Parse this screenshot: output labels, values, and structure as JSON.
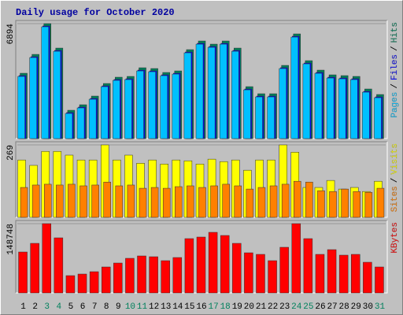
{
  "chart_data": [
    {
      "type": "bar",
      "title": "Daily usage for October 2020",
      "ylim": [
        0,
        6894
      ],
      "yticks": [
        6894
      ],
      "legend_separator": "/",
      "series": [
        {
          "name": "Pages",
          "color": "#00c0ff",
          "values": [
            3728,
            4860,
            6704,
            5238,
            1509,
            1840,
            2359,
            3114,
            3492,
            3539,
            4058,
            4011,
            3775,
            3869,
            5144,
            5663,
            5474,
            5663,
            5238,
            2925,
            2500,
            2500,
            4200,
            6088,
            4483,
            3916,
            3633,
            3586,
            3539,
            2784,
            2453
          ]
        },
        {
          "name": "Files",
          "color": "#0000ff",
          "values": [
            3778,
            4910,
            6754,
            5288,
            1559,
            1890,
            2409,
            3164,
            3542,
            3589,
            4108,
            4061,
            3825,
            3919,
            5194,
            5713,
            5524,
            5713,
            5288,
            2975,
            2550,
            2550,
            4250,
            6138,
            4533,
            3966,
            3683,
            3636,
            3589,
            2834,
            2503
          ]
        },
        {
          "name": "Hits",
          "color": "#00805c",
          "values": [
            3918,
            5050,
            6894,
            5428,
            1699,
            2030,
            2549,
            3304,
            3682,
            3729,
            4248,
            4201,
            3965,
            4059,
            5334,
            5853,
            5664,
            5853,
            5428,
            3115,
            2690,
            2690,
            4390,
            6278,
            4673,
            4106,
            3823,
            3776,
            3729,
            2974,
            2643
          ]
        }
      ]
    },
    {
      "type": "bar",
      "ylim": [
        0,
        269
      ],
      "yticks": [
        269
      ],
      "legend_separator": "/",
      "series": [
        {
          "name": "Sites",
          "color": "#ff8000",
          "values": [
            111,
            120,
            123,
            120,
            123,
            117,
            120,
            131,
            117,
            120,
            108,
            111,
            108,
            114,
            117,
            111,
            117,
            123,
            117,
            105,
            111,
            117,
            123,
            134,
            131,
            99,
            96,
            105,
            96,
            93,
            108
          ]
        },
        {
          "name": "Visits",
          "color": "#ffff00",
          "values": [
            213,
            193,
            245,
            245,
            231,
            213,
            213,
            269,
            213,
            231,
            201,
            213,
            198,
            213,
            210,
            198,
            216,
            207,
            213,
            175,
            213,
            213,
            269,
            242,
            111,
            111,
            137,
            105,
            111,
            96,
            134
          ]
        }
      ]
    },
    {
      "type": "bar",
      "ylim": [
        0,
        148748
      ],
      "yticks": [
        148748
      ],
      "categories": [
        "1",
        "2",
        "3",
        "4",
        "5",
        "6",
        "7",
        "8",
        "9",
        "10",
        "11",
        "12",
        "13",
        "14",
        "15",
        "16",
        "17",
        "18",
        "19",
        "20",
        "21",
        "22",
        "23",
        "24",
        "25",
        "26",
        "27",
        "28",
        "29",
        "30",
        "31"
      ],
      "category_colors": [
        "#000000",
        "#000000",
        "#00805c",
        "#00805c",
        "#000000",
        "#000000",
        "#000000",
        "#000000",
        "#000000",
        "#00805c",
        "#00805c",
        "#000000",
        "#000000",
        "#000000",
        "#000000",
        "#000000",
        "#00805c",
        "#00805c",
        "#000000",
        "#000000",
        "#000000",
        "#000000",
        "#000000",
        "#00805c",
        "#00805c",
        "#000000",
        "#000000",
        "#000000",
        "#000000",
        "#000000",
        "#00805c"
      ],
      "series": [
        {
          "name": "KBytes",
          "color": "#ff0000",
          "values": [
            87896,
            106489,
            148748,
            118321,
            37187,
            40567,
            45638,
            55780,
            64231,
            74374,
            79445,
            77754,
            69302,
            76064,
            116631,
            120012,
            130154,
            123393,
            106489,
            86205,
            82824,
            69302,
            98037,
            148748,
            116631,
            82824,
            92967,
            81135,
            82824,
            65922,
            55780
          ]
        }
      ]
    }
  ]
}
